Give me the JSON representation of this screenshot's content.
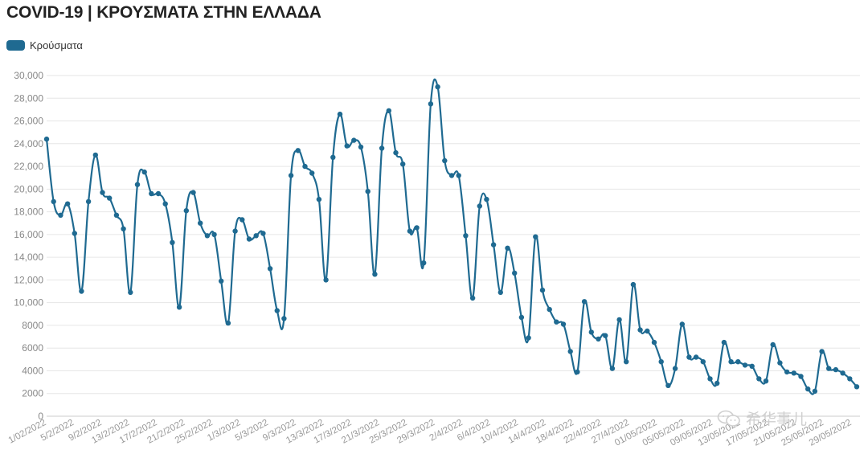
{
  "title": "COVID-19 | ΚΡΟΥΣΜΑΤΑ ΣΤΗΝ ΕΛΛΑΔΑ",
  "watermark": "希华事儿",
  "colors": {
    "series": "#1f6a91",
    "grid": "#e6e6e6",
    "tick_text": "#888888"
  },
  "chart_data": {
    "type": "line",
    "title": "COVID-19 | ΚΡΟΥΣΜΑΤΑ ΣΤΗΝ ΕΛΛΑΔΑ",
    "xlabel": "",
    "ylabel": "",
    "ylim": [
      0,
      30000
    ],
    "yticks": [
      0,
      2000,
      4000,
      6000,
      8000,
      10000,
      12000,
      14000,
      16000,
      18000,
      20000,
      22000,
      24000,
      26000,
      28000,
      30000
    ],
    "ytick_labels": [
      "0",
      "2000",
      "4000",
      "6000",
      "8000",
      "10,000",
      "12,000",
      "14,000",
      "16,000",
      "18,000",
      "20,000",
      "22,000",
      "24,000",
      "26,000",
      "28,000",
      "30,000"
    ],
    "x_tick_labels": [
      "1/02/2022",
      "5/2/2022",
      "9/2/2022",
      "13/2/2022",
      "17/2/2022",
      "21/2/2022",
      "25/2/2022",
      "1/3/2022",
      "5/3/2022",
      "9/3/2022",
      "13/3/2022",
      "17/3/2022",
      "21/3/2022",
      "25/3/2022",
      "29/3/2022",
      "2/4/2022",
      "6/4/2022",
      "10/4/2022",
      "14/4/2022",
      "18/4/2022",
      "22/4/2022",
      "27/4/2022",
      "01/05/2022",
      "05/05/2022",
      "09/05/2022",
      "13/05/2022",
      "17/05/2022",
      "21/05/2022",
      "25/05/2022",
      "29/05/2022"
    ],
    "grid": true,
    "legend": "top-left",
    "series": [
      {
        "name": "Κρούσματα",
        "values": [
          24400,
          18900,
          17700,
          18700,
          16100,
          11000,
          18900,
          23000,
          19700,
          19200,
          17700,
          16500,
          10900,
          20400,
          21500,
          19600,
          19600,
          18700,
          15300,
          9600,
          18100,
          19700,
          17000,
          15900,
          16000,
          11900,
          8200,
          16300,
          17300,
          15600,
          15900,
          16100,
          13000,
          9300,
          8600,
          21200,
          23400,
          22000,
          21400,
          19100,
          12000,
          22800,
          26600,
          23800,
          24300,
          23700,
          19800,
          12500,
          23600,
          26900,
          23200,
          22200,
          16300,
          16600,
          13500,
          27500,
          29000,
          22500,
          21200,
          21200,
          15900,
          10400,
          18500,
          19100,
          15100,
          10900,
          14800,
          12600,
          8700,
          6900,
          15800,
          11100,
          9400,
          8300,
          8100,
          5700,
          3900,
          10100,
          7400,
          6800,
          7100,
          4200,
          8500,
          4800,
          11600,
          7600,
          7500,
          6500,
          4800,
          2700,
          4200,
          8100,
          5200,
          5200,
          4800,
          3300,
          2900,
          6500,
          4800,
          4800,
          4500,
          4400,
          3300,
          3100,
          6300,
          4700,
          3900,
          3800,
          3500,
          2400,
          2200,
          5700,
          4200,
          4100,
          3800,
          3300,
          2600
        ]
      }
    ]
  }
}
